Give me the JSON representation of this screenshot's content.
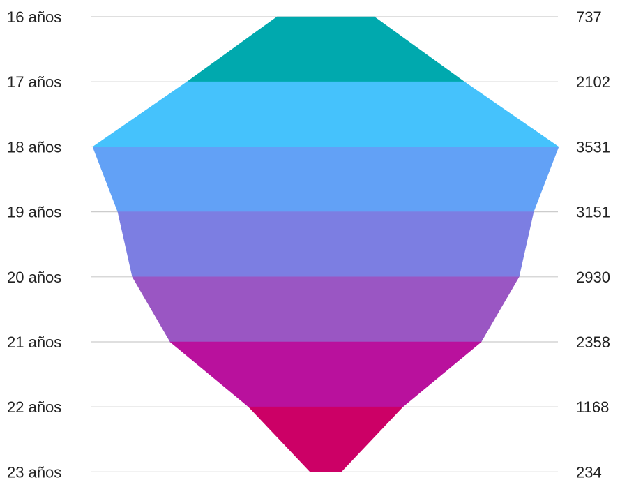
{
  "chart_data": {
    "type": "area",
    "categories": [
      "16 años",
      "17 años",
      "18 años",
      "19 años",
      "20 años",
      "21 años",
      "22 años",
      "23 años"
    ],
    "values": [
      737,
      2102,
      3531,
      3151,
      2930,
      2358,
      1168,
      234
    ],
    "value_labels": [
      "737",
      "2102",
      "3531",
      "3151",
      "2930",
      "2358",
      "1168",
      "234"
    ],
    "band_colors": [
      "#00a9ae",
      "#45c2fc",
      "#62a1f6",
      "#7c7ee2",
      "#9a56c3",
      "#b9119d",
      "#cc0066"
    ],
    "gridline_color": "#cccccc",
    "grid": true
  }
}
